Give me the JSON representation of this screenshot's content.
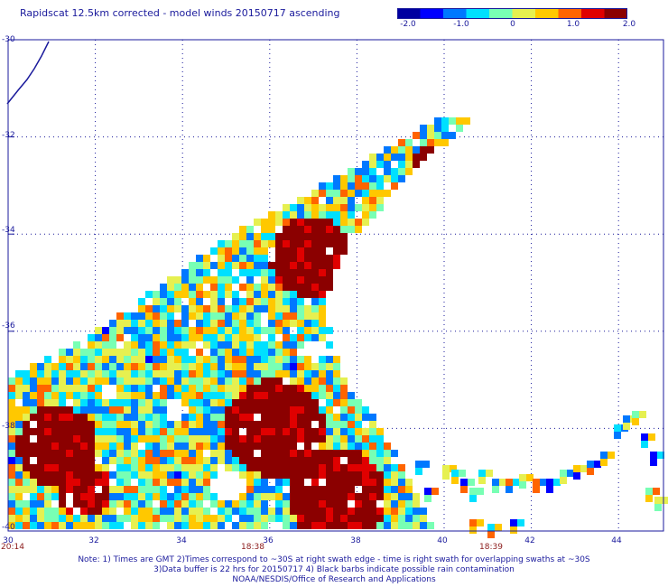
{
  "title": "Rapidscat 12.5km corrected - model winds 20150717 ascending",
  "colorbar": {
    "ticks": [
      "-2.0",
      "-1.0",
      "0",
      "1.0",
      "2.0"
    ],
    "range": [
      -2.0,
      2.0
    ],
    "colors": [
      "#0000a0",
      "#0000ff",
      "#0078ff",
      "#00e0ff",
      "#78ffb4",
      "#e6f050",
      "#ffc800",
      "#ff6400",
      "#e00000",
      "#8b0000"
    ]
  },
  "axes": {
    "lon_ticks": [
      "30",
      "32",
      "34",
      "36",
      "38",
      "40",
      "42",
      "44"
    ],
    "lat_ticks": [
      "-30",
      "-32",
      "-34",
      "-36",
      "-38",
      "-40"
    ],
    "lon_range": [
      30,
      45
    ],
    "lat_range": [
      -40,
      -30
    ],
    "grid": "dotted"
  },
  "times": {
    "left": "20:14",
    "middle": "18:38",
    "right": "18:39"
  },
  "notes": {
    "line1": "Note: 1) Times are GMT 2)Times correspond to ~30S at right swath edge - time is right swath for overlapping swaths at ~30S",
    "line2": "3)Data buffer is 22 hrs for 20150717 4) Black barbs indicate possible rain contamination",
    "line3": "NOAA/NESDIS/Office of Research and Applications"
  },
  "coastline_color": "#1a1a9c"
}
